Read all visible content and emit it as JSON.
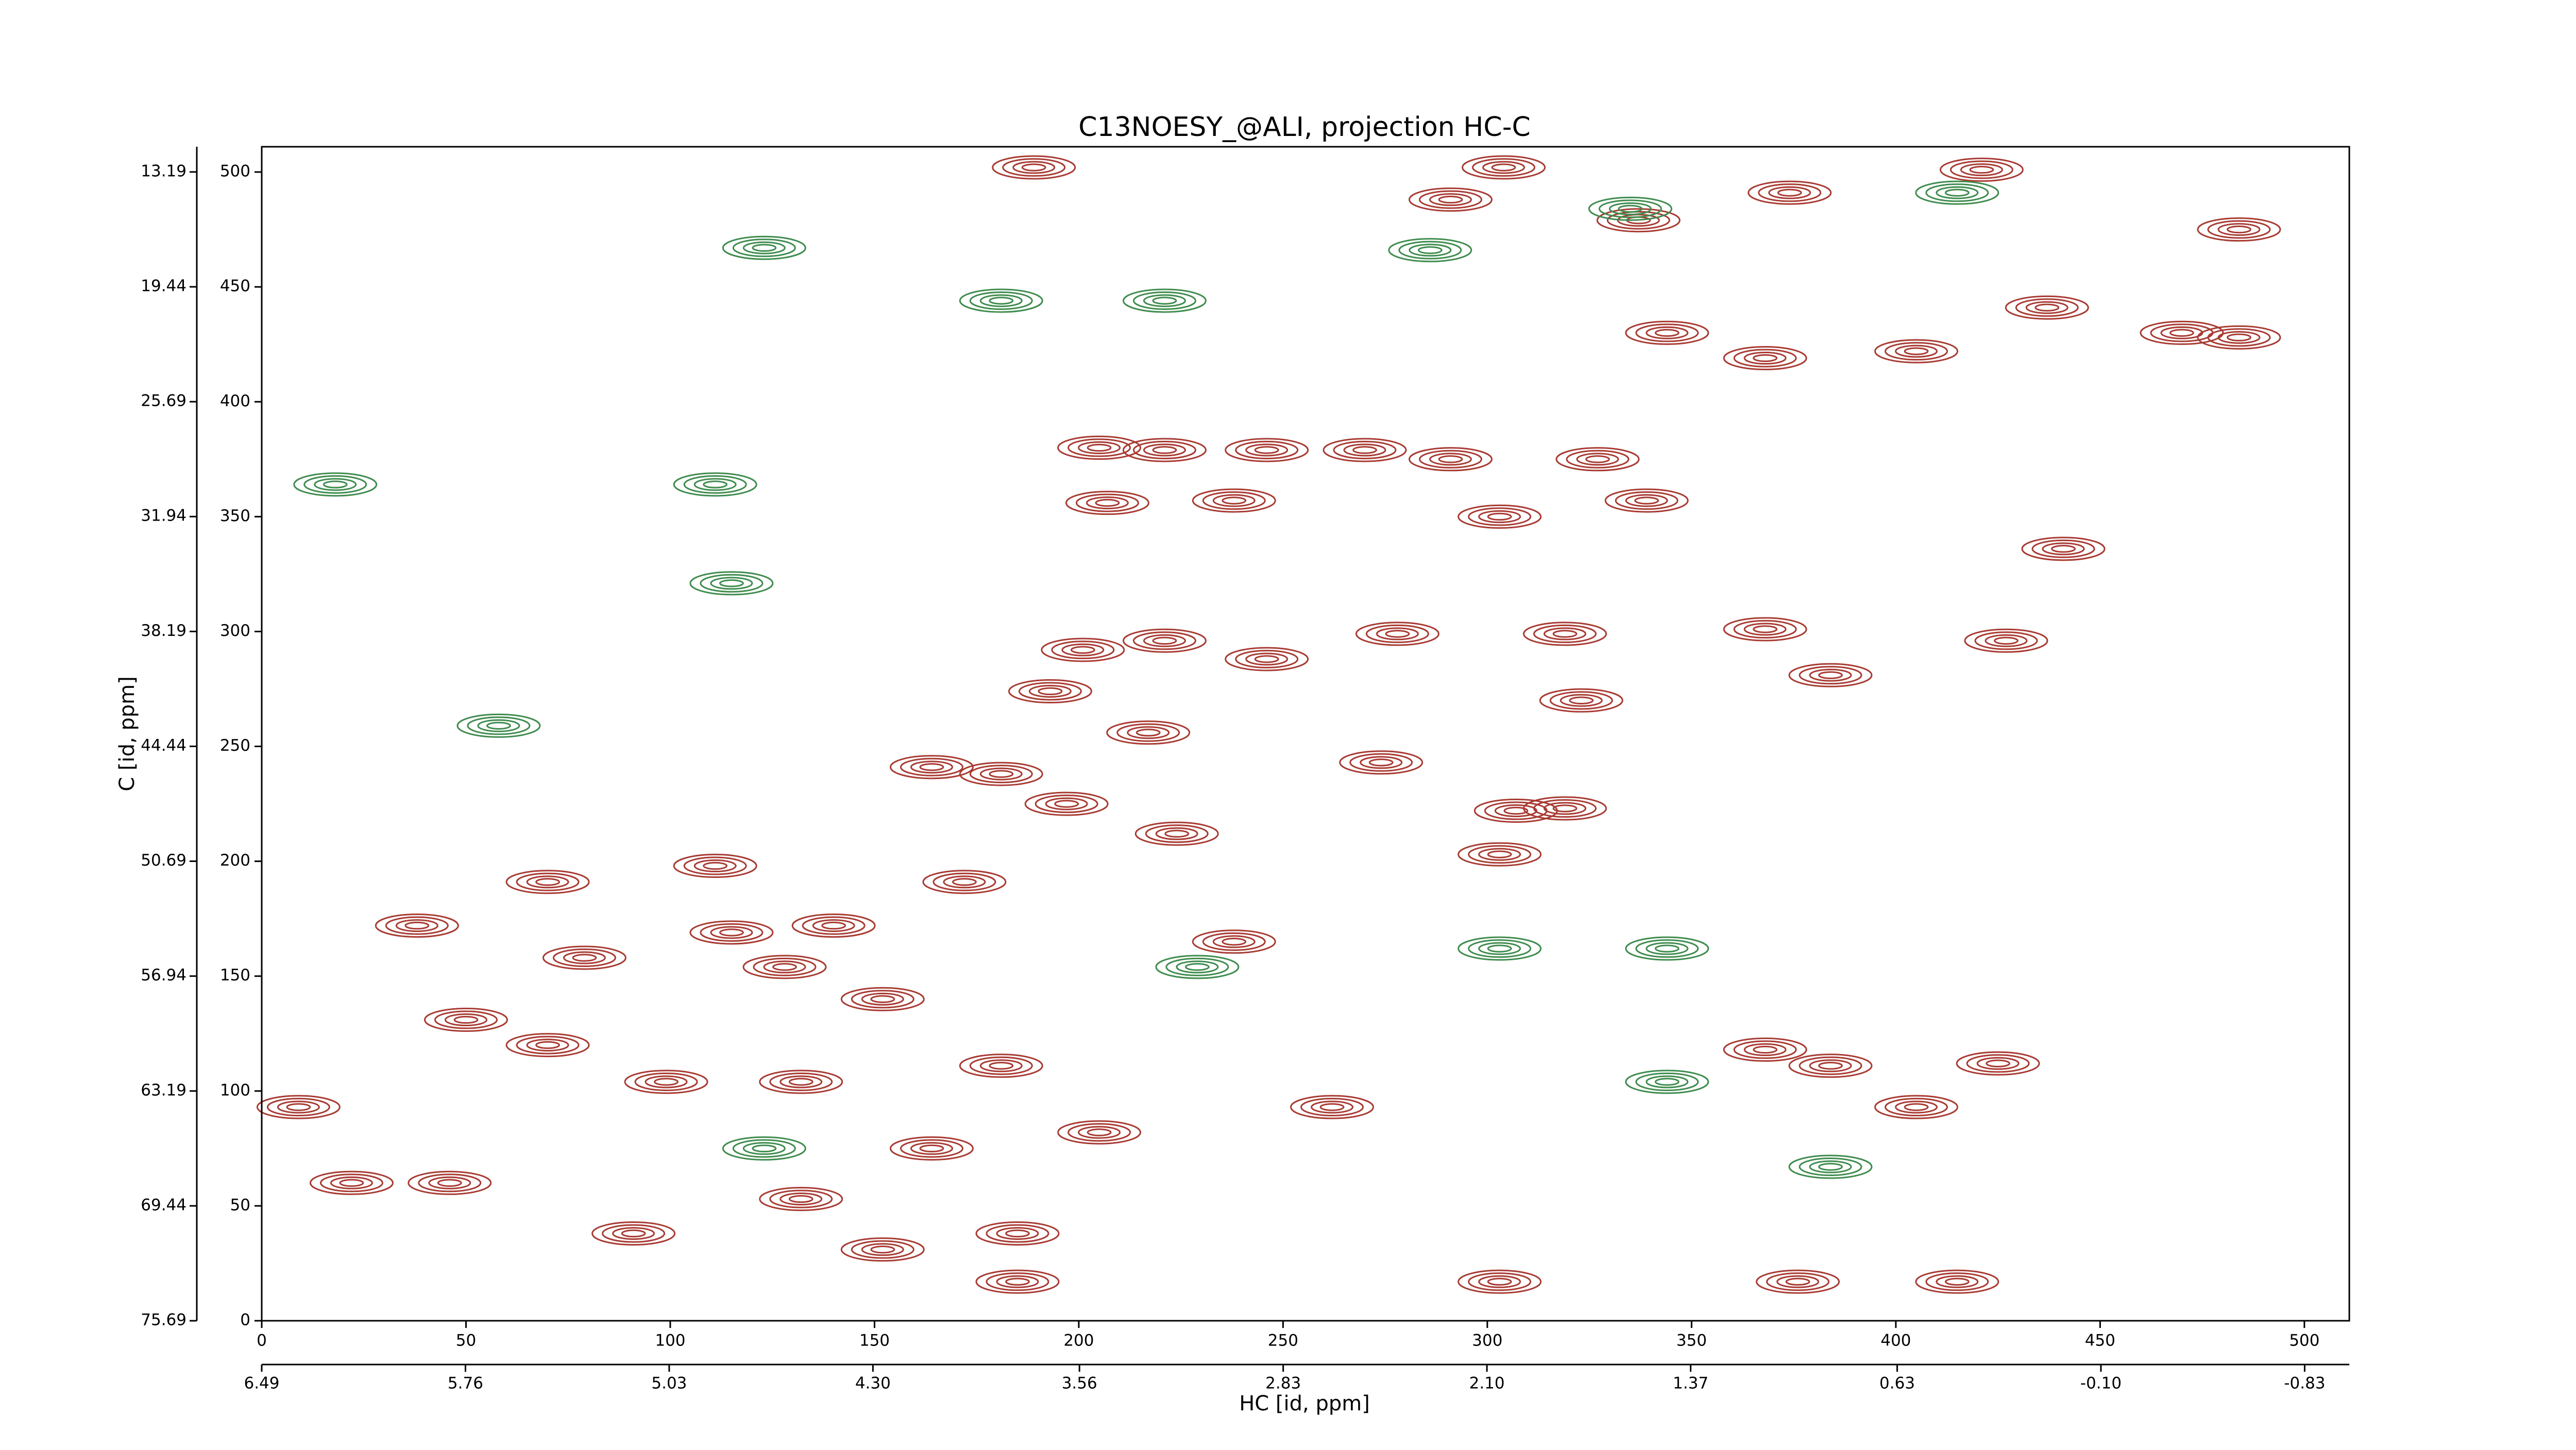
{
  "chart_data": {
    "type": "contour",
    "title": "C13NOESY_@ALI, projection HC-C",
    "xlabel": "HC [id, ppm]",
    "ylabel": "C [id, ppm]",
    "xlim": [
      0,
      511
    ],
    "xticks": [
      0,
      50,
      100,
      150,
      200,
      250,
      300,
      350,
      400,
      450,
      500
    ],
    "x2lim": [
      6.49,
      -0.99
    ],
    "x2ticks": [
      6.49,
      5.76,
      5.03,
      {
        "value": 4.3,
        "label": "4.30"
      },
      3.56,
      2.83,
      {
        "value": 2.1,
        "label": "2.10"
      },
      1.37,
      0.63,
      {
        "value": -0.1,
        "label": "-0.10"
      },
      -0.83
    ],
    "ylim": [
      0,
      511
    ],
    "yticks": [
      0,
      50,
      100,
      150,
      200,
      250,
      300,
      350,
      400,
      450,
      500
    ],
    "y2lim": [
      75.69,
      11.82
    ],
    "y2ticks": [
      75.69,
      69.44,
      63.19,
      56.94,
      50.69,
      44.44,
      38.19,
      31.94,
      25.69,
      19.44,
      13.19
    ],
    "series": [
      {
        "color": "#a83b33",
        "x": [
          189,
          337,
          374,
          421,
          484,
          437,
          470,
          484,
          344,
          368,
          405,
          205,
          221,
          246,
          270,
          291,
          327,
          207,
          238,
          303,
          339,
          441,
          201,
          221,
          246,
          278,
          319,
          368,
          427,
          193,
          217,
          274,
          323,
          384,
          164,
          181,
          197,
          307,
          319,
          303,
          224,
          172,
          238,
          140,
          38,
          79,
          128,
          152,
          181,
          262,
          132,
          99,
          9,
          22,
          46,
          132,
          185,
          152,
          91,
          368,
          384,
          405,
          425,
          291,
          304,
          111,
          70,
          50,
          70,
          115,
          164,
          205,
          376,
          415,
          303,
          185
        ],
        "values": [
          502,
          479,
          491,
          501,
          475,
          441,
          430,
          428,
          430,
          419,
          422,
          380,
          379,
          379,
          379,
          375,
          375,
          356,
          357,
          350,
          357,
          336,
          292,
          296,
          288,
          299,
          299,
          301,
          296,
          274,
          256,
          243,
          270,
          281,
          241,
          238,
          225,
          222,
          223,
          203,
          212,
          191,
          165,
          172,
          172,
          158,
          154,
          140,
          111,
          93,
          104,
          104,
          93,
          60,
          60,
          53,
          38,
          31,
          38,
          118,
          111,
          93,
          112,
          488,
          502,
          198,
          191,
          131,
          120,
          169,
          75,
          82,
          17,
          17,
          17,
          17
        ]
      },
      {
        "color": "#3f8c4e",
        "x": [
          123,
          181,
          111,
          115,
          18,
          58,
          229,
          344,
          303,
          123,
          384,
          344,
          221,
          286,
          415,
          335
        ],
        "values": [
          467,
          444,
          364,
          321,
          364,
          259,
          154,
          162,
          162,
          75,
          67,
          104,
          444,
          466,
          491,
          484
        ]
      }
    ]
  }
}
